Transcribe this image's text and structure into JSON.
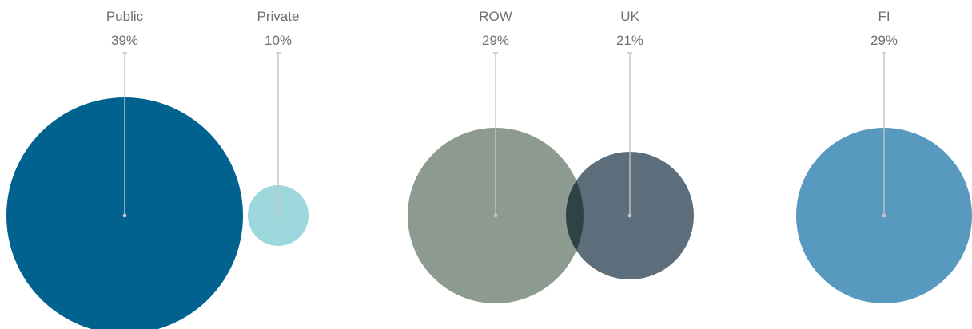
{
  "chart_data": {
    "type": "bubble",
    "bubbles": [
      {
        "label": "Public",
        "value": 39,
        "display": "39%",
        "color": "#02628f"
      },
      {
        "label": "Private",
        "value": 10,
        "display": "10%",
        "color": "#9dd8dc"
      },
      {
        "label": "ROW",
        "value": 29,
        "display": "29%",
        "color": "#8c9a8f"
      },
      {
        "label": "UK",
        "value": 21,
        "display": "21%",
        "color": "#5c6e7b"
      },
      {
        "label": "FI",
        "value": 29,
        "display": "29%",
        "color": "#5799bf"
      }
    ],
    "overlap_color": "#2f4346",
    "leader_color": "#c4c4c4"
  }
}
